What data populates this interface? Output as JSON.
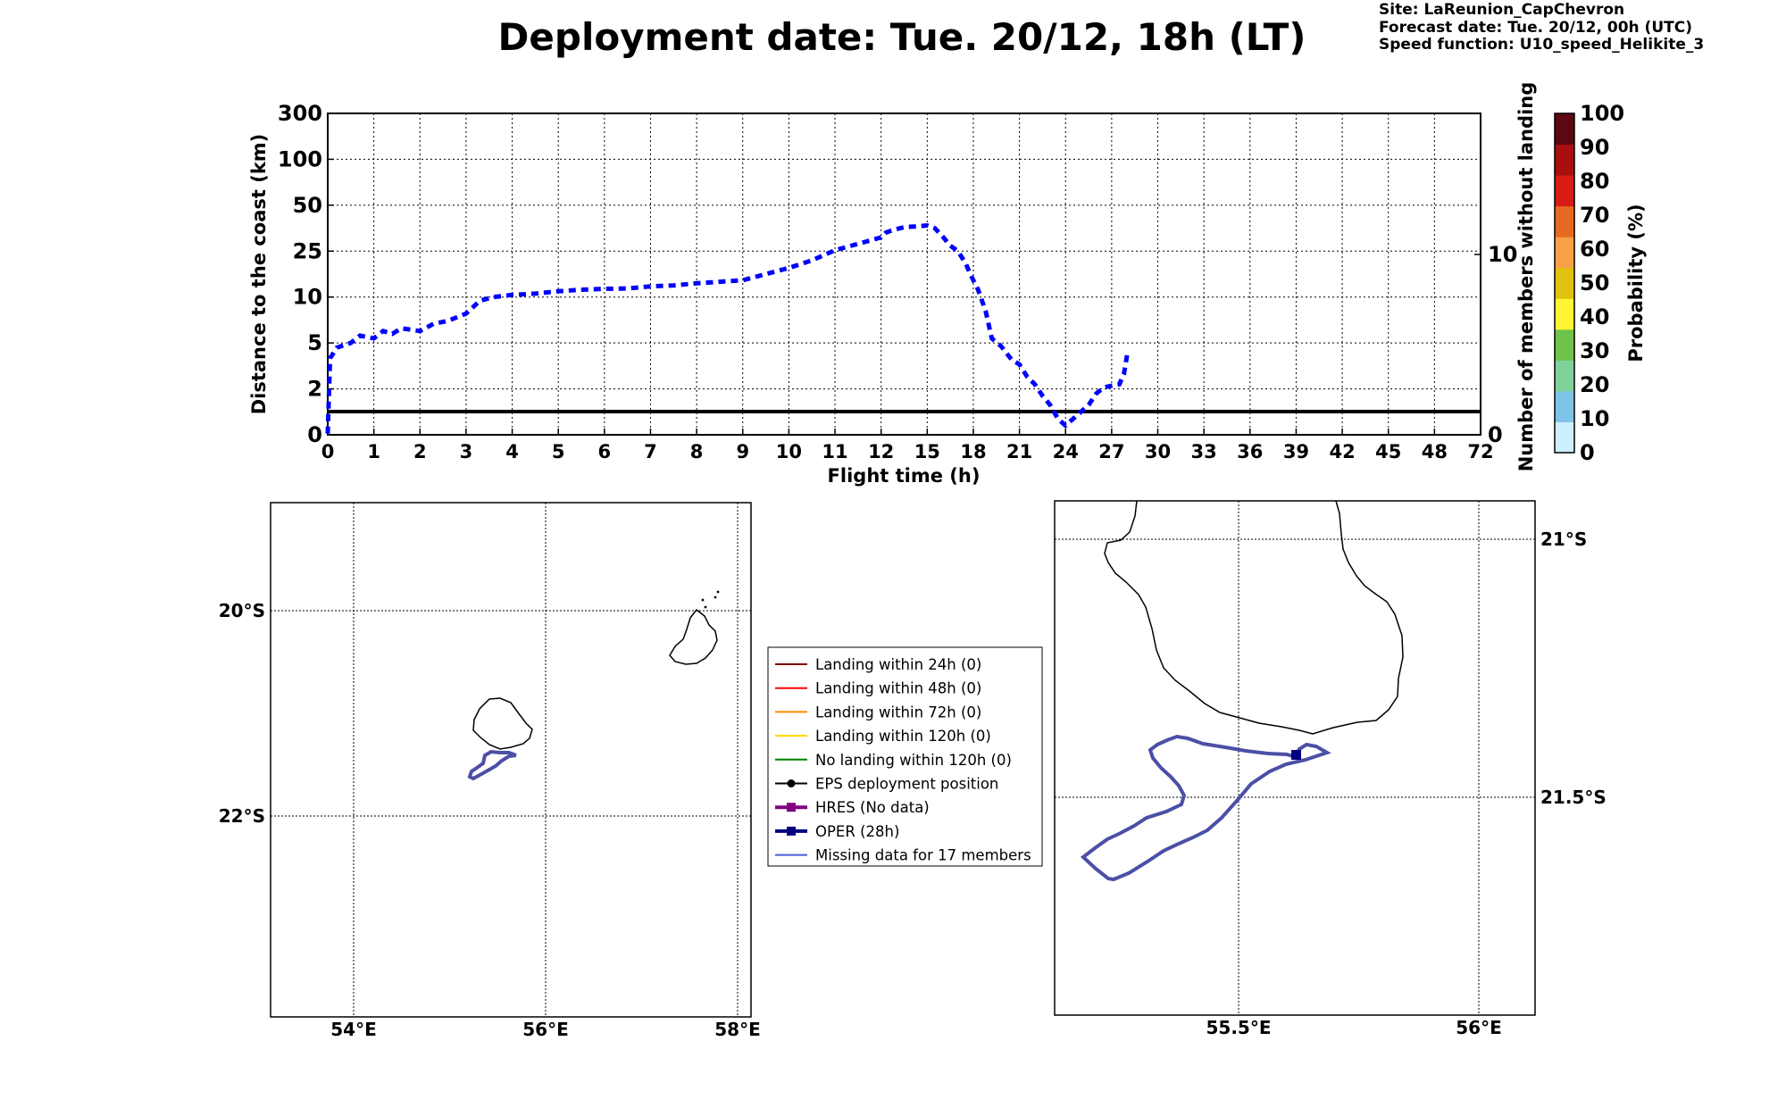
{
  "header": {
    "title": "Deployment date: Tue. 20/12, 18h (LT)",
    "site": "Site: LaReunion_CapChevron",
    "forecast": "Forecast date: Tue. 20/12, 00h (UTC)",
    "speed_function": "Speed function: U10_speed_Helikite_3"
  },
  "chart_data": [
    {
      "type": "line",
      "xlabel": "Flight time (h)",
      "ylabel": "Distance to the coast (km)",
      "ylabel_right": "Number of members without landing",
      "x_ticks": [
        "0",
        "1",
        "2",
        "3",
        "4",
        "5",
        "6",
        "7",
        "8",
        "9",
        "10",
        "11",
        "12",
        "15",
        "18",
        "21",
        "24",
        "27",
        "30",
        "33",
        "36",
        "39",
        "42",
        "45",
        "48",
        "72"
      ],
      "y_ticks": [
        "0",
        "2",
        "5",
        "10",
        "25",
        "50",
        "100",
        "300"
      ],
      "y_right_ticks": [
        "0",
        "10"
      ],
      "grid": true,
      "members_line_value": 1,
      "series": [
        {
          "style": "dashed",
          "color": "#0000ff",
          "x": [
            0,
            0.05,
            0.2,
            0.5,
            0.7,
            1,
            1.2,
            1.4,
            1.6,
            2,
            2.3,
            2.6,
            3,
            3.3,
            3.6,
            4,
            4.5,
            5,
            5.5,
            6,
            6.5,
            7,
            7.5,
            8,
            8.5,
            9,
            9.5,
            10,
            10.5,
            11,
            11.5,
            12,
            12.3,
            12.6,
            13,
            13.5,
            14,
            14.5,
            15,
            15.5,
            16,
            16.5,
            17,
            17.5,
            17.8,
            18.3,
            18.8,
            19.2,
            19.8,
            20.5,
            21,
            21.5,
            22,
            22.5,
            23,
            23.5,
            24,
            24.5,
            25,
            25.5,
            26,
            26.5,
            27,
            27.5,
            27.8,
            28
          ],
          "y": [
            0.05,
            4,
            4.7,
            5,
            5.8,
            5.5,
            6.3,
            6,
            6.6,
            6.3,
            7.1,
            7.4,
            8.2,
            9.6,
            10,
            10.7,
            11.1,
            11.9,
            12.4,
            12.7,
            12.8,
            13.5,
            13.8,
            14.5,
            15,
            15.5,
            17.5,
            19.5,
            22,
            25.5,
            29,
            32.5,
            35,
            36,
            37,
            38,
            38.3,
            38.6,
            39,
            37.5,
            33,
            28,
            25,
            21,
            17.5,
            12.5,
            8.5,
            5.5,
            4.8,
            3.9,
            3.6,
            2.8,
            2.3,
            1.7,
            1.3,
            0.7,
            0.4,
            0.7,
            1,
            1.3,
            1.8,
            2.1,
            2.2,
            2.3,
            3,
            4.2
          ]
        }
      ]
    },
    {
      "type": "map",
      "lon_ticks": [
        "54°E",
        "56°E",
        "58°E"
      ],
      "lat_ticks": [
        "20°S",
        "22°S"
      ],
      "grid": true
    },
    {
      "type": "map",
      "lon_ticks": [
        "55.5°E",
        "56°E"
      ],
      "lat_ticks": [
        "21°S",
        "21.5°S"
      ],
      "grid": true
    }
  ],
  "colorbar": {
    "label": "Probability (%)",
    "ticks": [
      "0",
      "10",
      "20",
      "30",
      "40",
      "50",
      "60",
      "70",
      "80",
      "90",
      "100"
    ],
    "colors": [
      "#ccf0ff",
      "#7fc2e8",
      "#7fd19a",
      "#6fc24a",
      "#fff533",
      "#e3c10f",
      "#f8a048",
      "#e76a22",
      "#d81b14",
      "#a80f0f",
      "#5d0711"
    ]
  },
  "legend": {
    "items": [
      {
        "label": "Landing within 24h (0)",
        "color": "#800000",
        "marker": "none"
      },
      {
        "label": "Landing within 48h (0)",
        "color": "#ff0000",
        "marker": "none"
      },
      {
        "label": "Landing within 72h (0)",
        "color": "#ff8c00",
        "marker": "none"
      },
      {
        "label": "Landing within 120h (0)",
        "color": "#ffd700",
        "marker": "none"
      },
      {
        "label": "No landing within 120h (0)",
        "color": "#008000",
        "marker": "none"
      },
      {
        "label": "EPS deployment position",
        "color": "#000000",
        "marker": "dot"
      },
      {
        "label": "HRES (No data)",
        "color": "#800080",
        "marker": "square"
      },
      {
        "label": "OPER (28h)",
        "color": "#000080",
        "marker": "square"
      },
      {
        "label": "Missing data for 17 members",
        "color": "#4b5cd8",
        "marker": "none"
      }
    ]
  }
}
